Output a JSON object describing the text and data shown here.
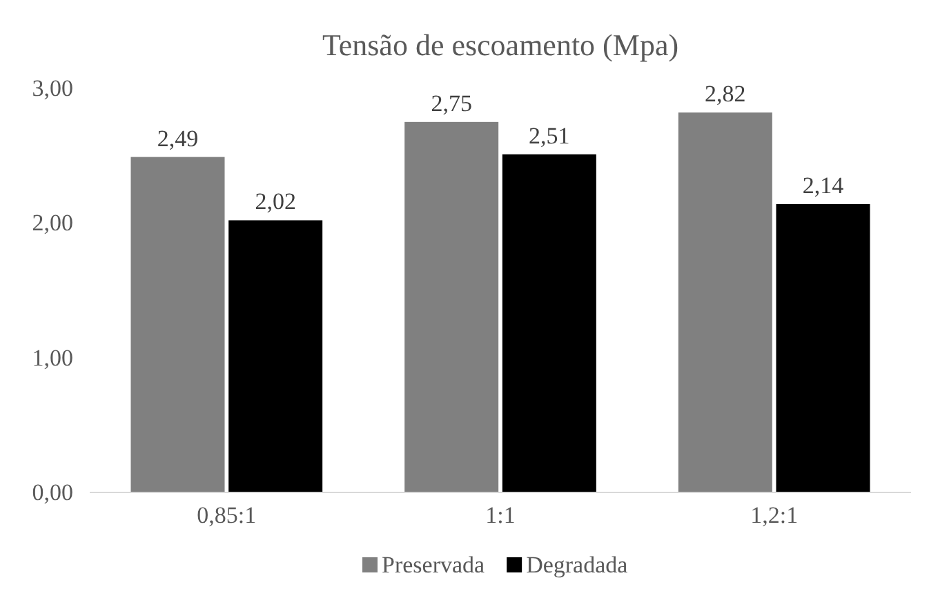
{
  "chart_data": {
    "type": "bar",
    "title": "Tensão de escoamento (Mpa)",
    "categories": [
      "0,85:1",
      "1:1",
      "1,2:1"
    ],
    "series": [
      {
        "name": "Preservada",
        "color": "#808080",
        "values": [
          2.49,
          2.75,
          2.82
        ],
        "value_labels": [
          "2,49",
          "2,75",
          "2,82"
        ]
      },
      {
        "name": "Degradada",
        "color": "#000000",
        "values": [
          2.02,
          2.51,
          2.14
        ],
        "value_labels": [
          "2,02",
          "2,51",
          "2,14"
        ]
      }
    ],
    "ylim": [
      0,
      3
    ],
    "yticks": [
      {
        "value": 0,
        "label": "0,00"
      },
      {
        "value": 1,
        "label": "1,00"
      },
      {
        "value": 2,
        "label": "2,00"
      },
      {
        "value": 3,
        "label": "3,00"
      }
    ],
    "grid": false,
    "legend": "bottom"
  }
}
